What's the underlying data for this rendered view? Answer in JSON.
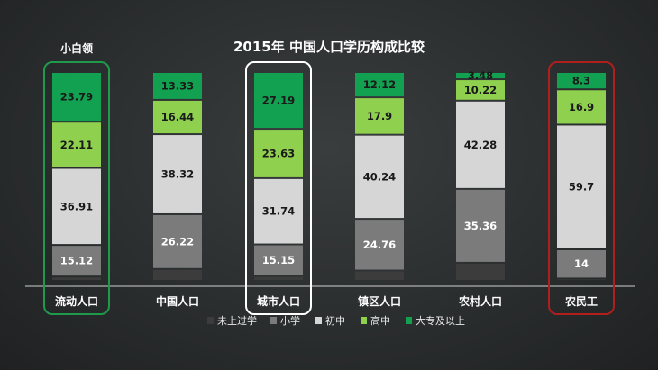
{
  "chart_data": {
    "type": "bar",
    "stacked": true,
    "normalized": true,
    "title": "2015年 中国人口学历构成比较",
    "categories": [
      "流动人口",
      "中国人口",
      "城市人口",
      "镇区人口",
      "农村人口",
      "农民工"
    ],
    "series": [
      {
        "name": "未上过学",
        "values": [
          2.07,
          5.69,
          2.29,
          4.94,
          8.66,
          1.1
        ]
      },
      {
        "name": "小学",
        "values": [
          15.12,
          26.22,
          15.15,
          24.76,
          35.36,
          14
        ]
      },
      {
        "name": "初中",
        "values": [
          36.91,
          38.32,
          31.74,
          40.24,
          42.28,
          59.7
        ]
      },
      {
        "name": "高中",
        "values": [
          22.11,
          16.44,
          23.63,
          17.9,
          10.22,
          16.9
        ]
      },
      {
        "name": "大专及以上",
        "values": [
          23.79,
          13.33,
          27.19,
          12.12,
          3.48,
          8.3
        ]
      }
    ],
    "labeled_series": [
      "小学",
      "初中",
      "高中",
      "大专及以上"
    ],
    "colors": [
      "#3c3c3c",
      "#7b7b7b",
      "#d6d6d6",
      "#8fd14f",
      "#12a150"
    ],
    "label_colors": [
      "#ffffff",
      "#ffffff",
      "#1a1a1a",
      "#1a1a1a",
      "#1a1a1a"
    ],
    "ylim": [
      0,
      100
    ],
    "legend_position": "bottom",
    "annotation": {
      "text": "小白领",
      "category": "流动人口"
    },
    "highlights": [
      {
        "category": "流动人口",
        "color": "#1f9a4a"
      },
      {
        "category": "城市人口",
        "color": "#ffffff"
      },
      {
        "category": "农民工",
        "color": "#b01e1e"
      }
    ]
  }
}
